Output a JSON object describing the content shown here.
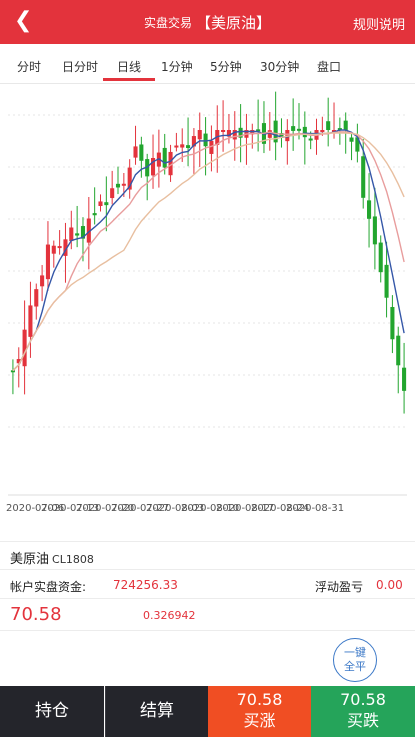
{
  "header": {
    "back_icon": "chevron-left-icon",
    "subtitle": "实盘交易",
    "title": "【美原油】",
    "rules_link": "规则说明",
    "bg_color": "#e3333c"
  },
  "tabs": [
    {
      "label": "分时",
      "active": false
    },
    {
      "label": "日分时",
      "active": false
    },
    {
      "label": "日线",
      "active": true
    },
    {
      "label": "1分钟",
      "active": false
    },
    {
      "label": "5分钟",
      "active": false
    },
    {
      "label": "30分钟",
      "active": false
    },
    {
      "label": "盘口",
      "active": false
    }
  ],
  "chart_data": {
    "type": "candlestick",
    "x_tick_labels": [
      "2020-07-06",
      "2020-07-13",
      "2020-07-20",
      "2020-07-27",
      "2020-08-03",
      "2020-08-10",
      "2020-08-17",
      "2020-08-24",
      "2020-08-31"
    ],
    "up_color": "#e3333c",
    "down_color": "#22a52e",
    "ma_colors": [
      "#3557a8",
      "#e89d9d",
      "#e8bfa0"
    ],
    "grid": true
  },
  "instrument": {
    "name": "美原油",
    "code": "CL1808"
  },
  "account": {
    "capital_label": "帐户实盘资金:",
    "capital_value": "724256.33",
    "float_pl_label": "浮动盈亏",
    "float_pl_value": "0.00"
  },
  "quote": {
    "price": "70.58",
    "change": "0.326942"
  },
  "close_all_button": {
    "line1": "一键",
    "line2": "全平"
  },
  "bottom_bar": {
    "position_label": "持仓",
    "settle_label": "结算",
    "buy_up_price": "70.58",
    "buy_up_label": "买涨",
    "buy_down_price": "70.58",
    "buy_down_label": "买跌"
  }
}
